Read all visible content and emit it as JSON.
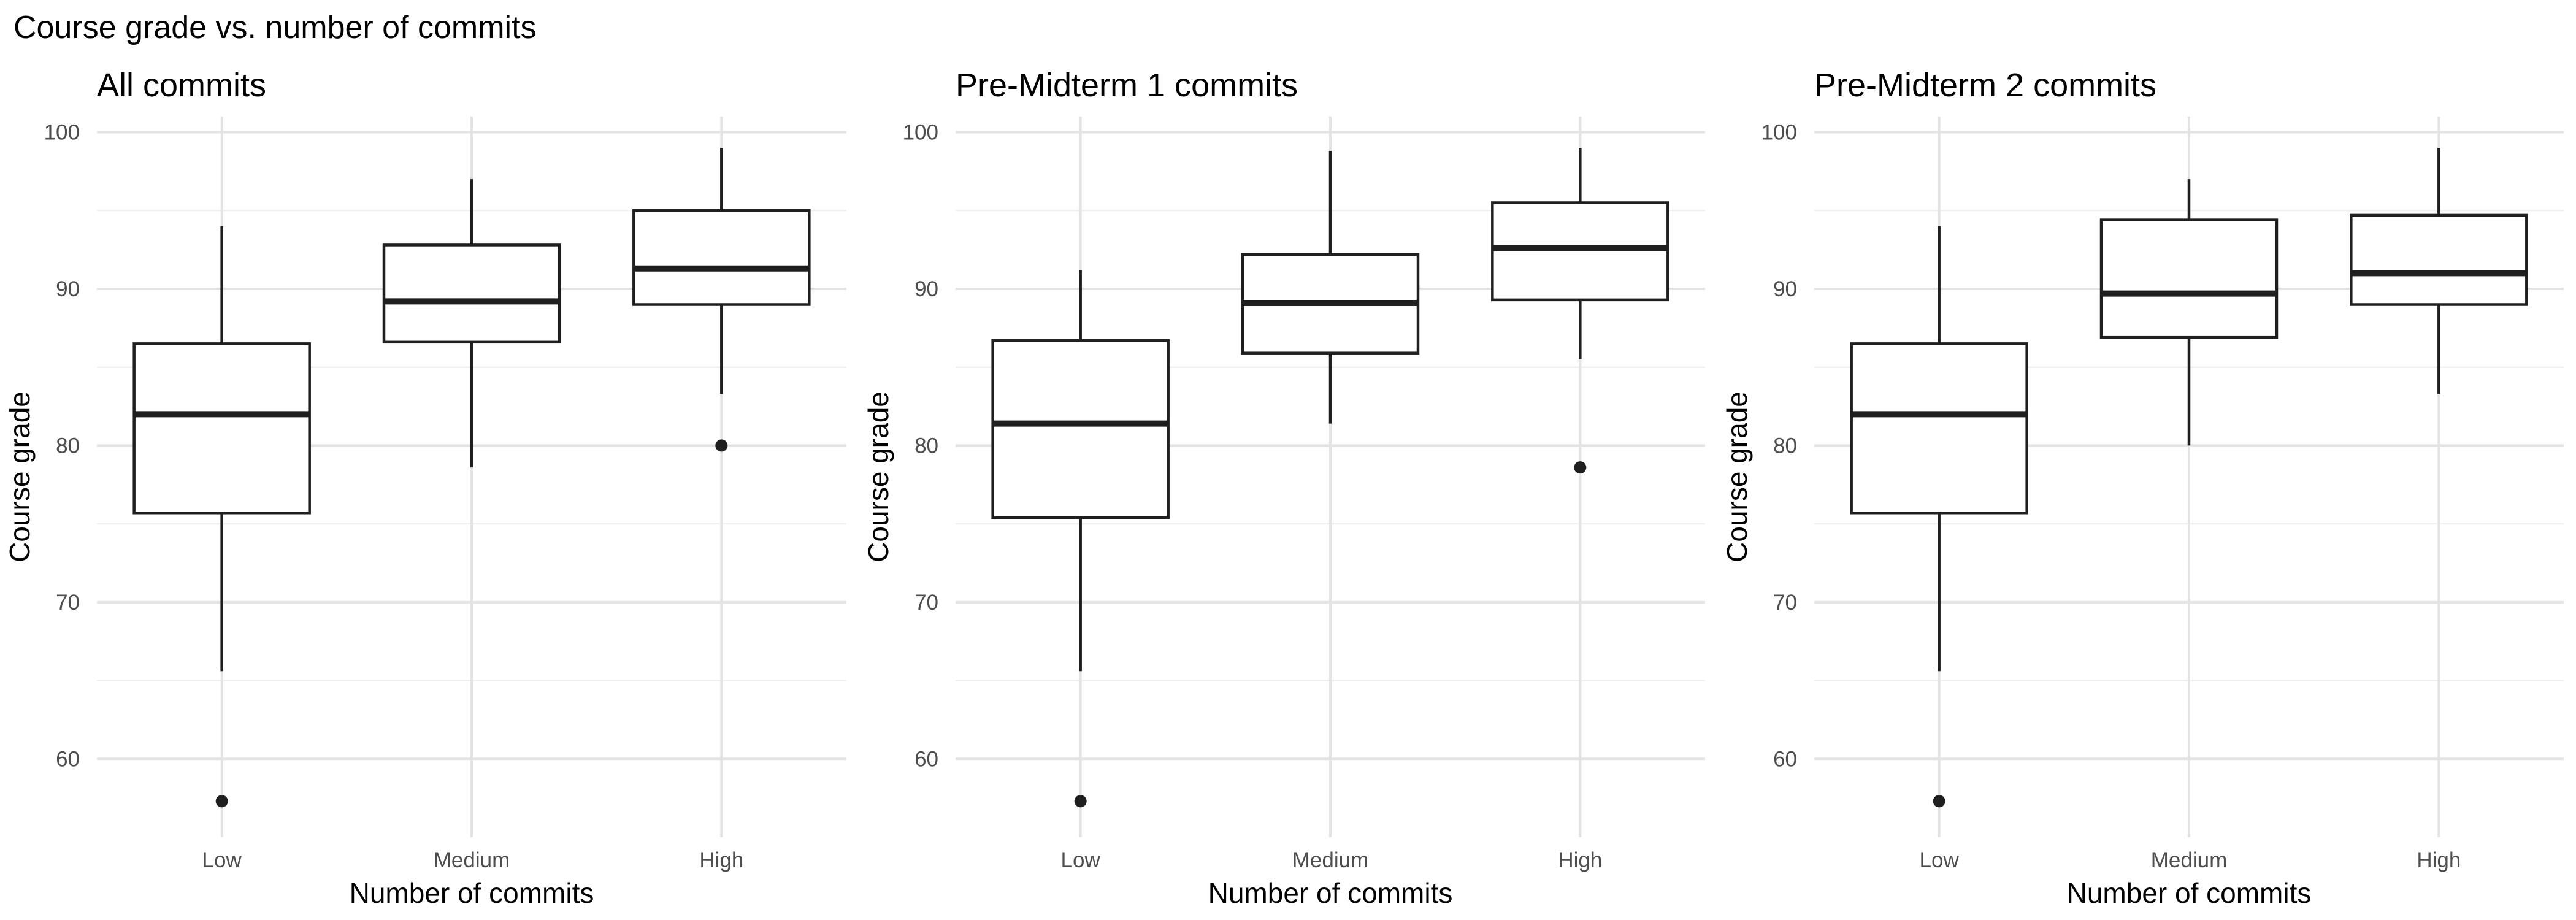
{
  "figure_title": "Course grade vs. number of commits",
  "chart_data": [
    {
      "type": "box",
      "title": "All commits",
      "xlabel": "Number of commits",
      "ylabel": "Course grade",
      "categories": [
        "Low",
        "Medium",
        "High"
      ],
      "ylim": [
        55,
        101
      ],
      "yticks": [
        60,
        70,
        80,
        90,
        100
      ],
      "grid": true,
      "boxes": [
        {
          "category": "Low",
          "min": 65.6,
          "q1": 75.7,
          "median": 82.0,
          "q3": 86.5,
          "max": 94.0,
          "outliers": [
            57.3
          ]
        },
        {
          "category": "Medium",
          "min": 78.6,
          "q1": 86.6,
          "median": 89.2,
          "q3": 92.8,
          "max": 97.0,
          "outliers": []
        },
        {
          "category": "High",
          "min": 83.3,
          "q1": 89.0,
          "median": 91.3,
          "q3": 95.0,
          "max": 99.0,
          "outliers": [
            80.0
          ]
        }
      ]
    },
    {
      "type": "box",
      "title": "Pre-Midterm 1 commits",
      "xlabel": "Number of commits",
      "ylabel": "Course grade",
      "categories": [
        "Low",
        "Medium",
        "High"
      ],
      "ylim": [
        55,
        101
      ],
      "yticks": [
        60,
        70,
        80,
        90,
        100
      ],
      "grid": true,
      "boxes": [
        {
          "category": "Low",
          "min": 65.6,
          "q1": 75.4,
          "median": 81.4,
          "q3": 86.7,
          "max": 91.2,
          "outliers": [
            57.3
          ]
        },
        {
          "category": "Medium",
          "min": 81.4,
          "q1": 85.9,
          "median": 89.1,
          "q3": 92.2,
          "max": 98.8,
          "outliers": []
        },
        {
          "category": "High",
          "min": 85.5,
          "q1": 89.3,
          "median": 92.6,
          "q3": 95.5,
          "max": 99.0,
          "outliers": [
            78.6
          ]
        }
      ]
    },
    {
      "type": "box",
      "title": "Pre-Midterm 2 commits",
      "xlabel": "Number of commits",
      "ylabel": "Course grade",
      "categories": [
        "Low",
        "Medium",
        "High"
      ],
      "ylim": [
        55,
        101
      ],
      "yticks": [
        60,
        70,
        80,
        90,
        100
      ],
      "grid": true,
      "boxes": [
        {
          "category": "Low",
          "min": 65.6,
          "q1": 75.7,
          "median": 82.0,
          "q3": 86.5,
          "max": 94.0,
          "outliers": [
            57.3
          ]
        },
        {
          "category": "Medium",
          "min": 80.0,
          "q1": 86.9,
          "median": 89.7,
          "q3": 94.4,
          "max": 97.0,
          "outliers": []
        },
        {
          "category": "High",
          "min": 83.3,
          "q1": 89.0,
          "median": 91.0,
          "q3": 94.7,
          "max": 99.0,
          "outliers": []
        }
      ]
    }
  ]
}
